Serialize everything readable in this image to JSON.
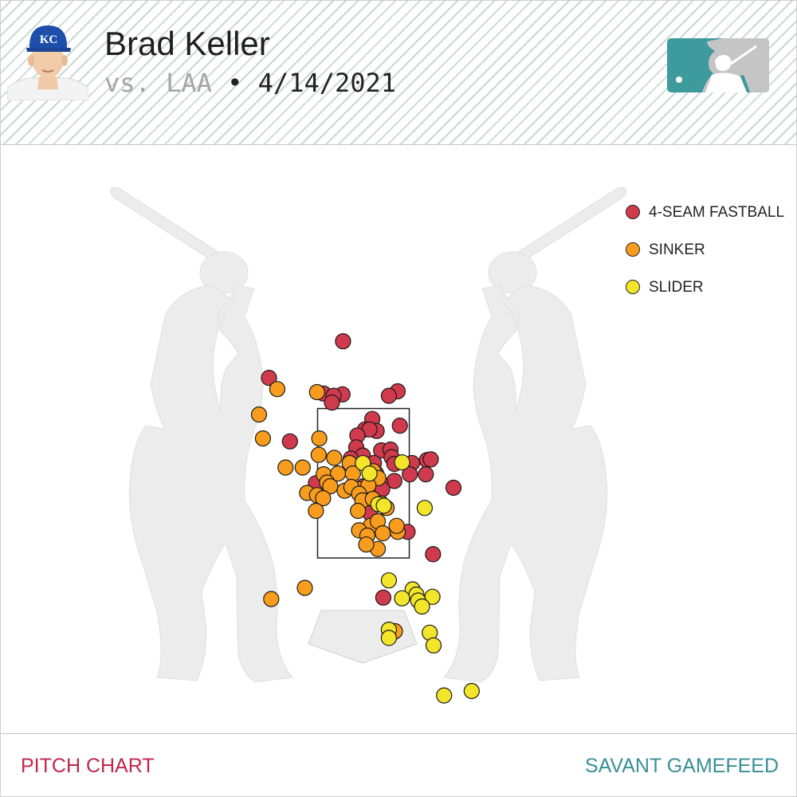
{
  "header": {
    "player_name": "Brad Keller",
    "opponent": "vs. LAA",
    "separator": " • ",
    "date": "4/14/2021",
    "team_logo_text": "KC"
  },
  "footer": {
    "left_label": "PITCH CHART",
    "right_label": "SAVANT GAMEFEED"
  },
  "colors": {
    "fastball": "#cf3a4c",
    "sinker": "#f89c1e",
    "slider": "#f2e52a",
    "footer_left": "#c0264a",
    "footer_right": "#3a8f96",
    "mlb_logo": "#3d9a9d"
  },
  "icons": [
    "team-headshot-icon",
    "mlb-logo-icon",
    "batter-silhouette-icon",
    "home-plate-icon"
  ],
  "chart_data": {
    "type": "scatter",
    "title": "",
    "xlabel": "",
    "ylabel": "",
    "grid": false,
    "legend_placement": "top-right",
    "strike_zone": {
      "x": [
        -0.83,
        0.83
      ],
      "z": [
        1.5,
        3.5
      ]
    },
    "xlim": [
      -3.0,
      3.0
    ],
    "ylim": [
      -1.0,
      4.7
    ],
    "series": [
      {
        "name": "4-SEAM FASTBALL",
        "color": "#cf3a4c",
        "points": [
          [
            -0.37,
            4.4
          ],
          [
            -1.71,
            3.91
          ],
          [
            -0.72,
            3.7
          ],
          [
            -0.38,
            3.69
          ],
          [
            -0.54,
            3.67
          ],
          [
            -0.57,
            3.58
          ],
          [
            0.62,
            3.73
          ],
          [
            0.46,
            3.67
          ],
          [
            0.16,
            3.36
          ],
          [
            0.03,
            3.22
          ],
          [
            0.24,
            3.2
          ],
          [
            0.11,
            3.22
          ],
          [
            0.66,
            3.27
          ],
          [
            -0.11,
            3.14
          ],
          [
            -1.33,
            3.06
          ],
          [
            -0.13,
            2.98
          ],
          [
            0.32,
            2.94
          ],
          [
            0.49,
            2.95
          ],
          [
            0.51,
            2.85
          ],
          [
            -0.01,
            2.87
          ],
          [
            -0.23,
            2.83
          ],
          [
            0.19,
            2.77
          ],
          [
            0.56,
            2.76
          ],
          [
            0.88,
            2.77
          ],
          [
            1.15,
            2.81
          ],
          [
            1.22,
            2.82
          ],
          [
            0.23,
            2.63
          ],
          [
            0.84,
            2.62
          ],
          [
            1.13,
            2.62
          ],
          [
            0.56,
            2.53
          ],
          [
            0.31,
            2.5
          ],
          [
            -0.86,
            2.5
          ],
          [
            0.0,
            2.46
          ],
          [
            0.34,
            2.42
          ],
          [
            1.63,
            2.44
          ],
          [
            0.12,
            2.1
          ],
          [
            0.8,
            1.85
          ],
          [
            1.26,
            1.55
          ],
          [
            0.36,
            0.97
          ],
          [
            0.55,
            0.51
          ]
        ]
      },
      {
        "name": "SINKER",
        "color": "#f89c1e",
        "points": [
          [
            -1.56,
            3.76
          ],
          [
            -0.84,
            3.72
          ],
          [
            -1.89,
            3.42
          ],
          [
            -1.82,
            3.1
          ],
          [
            -0.8,
            3.1
          ],
          [
            -0.81,
            2.88
          ],
          [
            -1.41,
            2.71
          ],
          [
            -1.1,
            2.71
          ],
          [
            -0.53,
            2.84
          ],
          [
            -0.25,
            2.77
          ],
          [
            -0.72,
            2.62
          ],
          [
            -0.46,
            2.63
          ],
          [
            -0.19,
            2.63
          ],
          [
            -0.66,
            2.51
          ],
          [
            -0.6,
            2.46
          ],
          [
            0.18,
            2.66
          ],
          [
            0.27,
            2.57
          ],
          [
            -0.34,
            2.4
          ],
          [
            -0.08,
            2.42
          ],
          [
            0.09,
            2.47
          ],
          [
            -0.22,
            2.45
          ],
          [
            -1.02,
            2.37
          ],
          [
            -0.84,
            2.34
          ],
          [
            -0.73,
            2.3
          ],
          [
            -0.08,
            2.36
          ],
          [
            -0.02,
            2.27
          ],
          [
            0.17,
            2.29
          ],
          [
            0.32,
            2.23
          ],
          [
            0.42,
            2.17
          ],
          [
            -0.86,
            2.13
          ],
          [
            -0.1,
            2.13
          ],
          [
            0.13,
            1.93
          ],
          [
            0.26,
            1.99
          ],
          [
            -0.08,
            1.87
          ],
          [
            0.07,
            1.8
          ],
          [
            0.35,
            1.83
          ],
          [
            0.62,
            1.85
          ],
          [
            0.26,
            1.62
          ],
          [
            0.6,
            1.93
          ],
          [
            0.05,
            1.68
          ],
          [
            -1.06,
            1.1
          ],
          [
            -1.67,
            0.95
          ],
          [
            0.57,
            0.52
          ]
        ]
      },
      {
        "name": "SLIDER",
        "color": "#f2e52a",
        "points": [
          [
            -0.01,
            2.77
          ],
          [
            0.7,
            2.78
          ],
          [
            0.11,
            2.63
          ],
          [
            0.27,
            2.22
          ],
          [
            0.37,
            2.2
          ],
          [
            1.11,
            2.17
          ],
          [
            0.46,
            1.2
          ],
          [
            0.89,
            1.08
          ],
          [
            0.96,
            1.01
          ],
          [
            1.25,
            0.98
          ],
          [
            0.7,
            0.96
          ],
          [
            0.99,
            0.93
          ],
          [
            1.06,
            0.85
          ],
          [
            0.46,
            0.54
          ],
          [
            0.46,
            0.43
          ],
          [
            1.2,
            0.5
          ],
          [
            1.27,
            0.33
          ],
          [
            1.46,
            -0.34
          ],
          [
            1.96,
            -0.28
          ]
        ]
      }
    ]
  }
}
